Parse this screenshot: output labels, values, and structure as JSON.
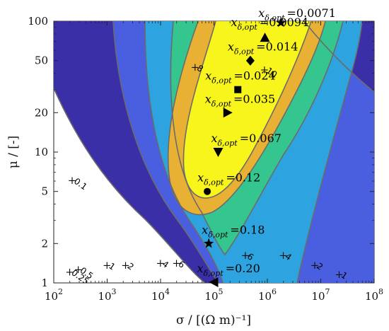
{
  "chart_data": {
    "type": "contour",
    "xlabel": "σ / [(Ω m)⁻¹]",
    "ylabel": "μ / [-]",
    "xscale": "log",
    "yscale": "log",
    "xlim": [
      100,
      100000000
    ],
    "ylim": [
      1,
      100
    ],
    "x_ticks": [
      "10",
      "10",
      "10",
      "10",
      "10",
      "10",
      "10"
    ],
    "x_tick_exponents": [
      "2",
      "3",
      "4",
      "5",
      "6",
      "7",
      "8"
    ],
    "x_tick_values": [
      100,
      1000,
      10000,
      100000,
      1000000,
      10000000,
      100000000
    ],
    "y_ticks": [
      "1",
      "2",
      "5",
      "10",
      "20",
      "50",
      "100"
    ],
    "y_tick_values": [
      1,
      2,
      5,
      10,
      20,
      50,
      100
    ],
    "fill_colors": [
      "#3b2fa8",
      "#4a5fe0",
      "#2da4df",
      "#35c690",
      "#e8b133",
      "#f8f51c"
    ],
    "contour_labels": [
      {
        "text": "0.1",
        "x": 200,
        "y": 6
      },
      {
        "text": "0.25",
        "x": 180,
        "y": 1.2
      },
      {
        "text": "0.5",
        "x": 260,
        "y": 1.25
      },
      {
        "text": "1",
        "x": 900,
        "y": 1.35
      },
      {
        "text": "2",
        "x": 2000,
        "y": 1.35
      },
      {
        "text": "4",
        "x": 9000,
        "y": 1.4
      },
      {
        "text": "6",
        "x": 18000,
        "y": 1.4
      },
      {
        "text": "6",
        "x": 350000,
        "y": 1.6
      },
      {
        "text": "4",
        "x": 1800000,
        "y": 1.6
      },
      {
        "text": "2",
        "x": 7000000,
        "y": 1.35
      },
      {
        "text": "1",
        "x": 20000000,
        "y": 1.15
      },
      {
        "text": "8",
        "x": 40000,
        "y": 44
      },
      {
        "text": "10",
        "x": 800000,
        "y": 42
      }
    ],
    "annotations": [
      {
        "label": "x",
        "subscript": "δ,opt",
        "value": "=0.0071",
        "marker": "star",
        "x": 1800000,
        "y": 100
      },
      {
        "label": "x",
        "subscript": "δ,opt",
        "value": "=0.0094",
        "marker": "triangle-up",
        "x": 900000,
        "y": 75
      },
      {
        "label": "x",
        "subscript": "δ,opt",
        "value": "=0.014",
        "marker": "diamond",
        "x": 480000,
        "y": 50
      },
      {
        "label": "x",
        "subscript": "δ,opt",
        "value": "=0.024",
        "marker": "square",
        "x": 280000,
        "y": 30
      },
      {
        "label": "x",
        "subscript": "δ,opt",
        "value": "=0.035",
        "marker": "triangle-right",
        "x": 180000,
        "y": 20
      },
      {
        "label": "x",
        "subscript": "δ,opt",
        "value": "=0.067",
        "marker": "triangle-down",
        "x": 120000,
        "y": 10
      },
      {
        "label": "x",
        "subscript": "δ,opt",
        "value": "=0.12",
        "marker": "circle",
        "x": 75000,
        "y": 5
      },
      {
        "label": "x",
        "subscript": "δ,opt",
        "value": "=0.18",
        "marker": "star",
        "x": 80000,
        "y": 2
      },
      {
        "label": "x",
        "subscript": "δ,opt",
        "value": "=0.20",
        "marker": "triangle-left",
        "x": 100000,
        "y": 1
      }
    ]
  }
}
